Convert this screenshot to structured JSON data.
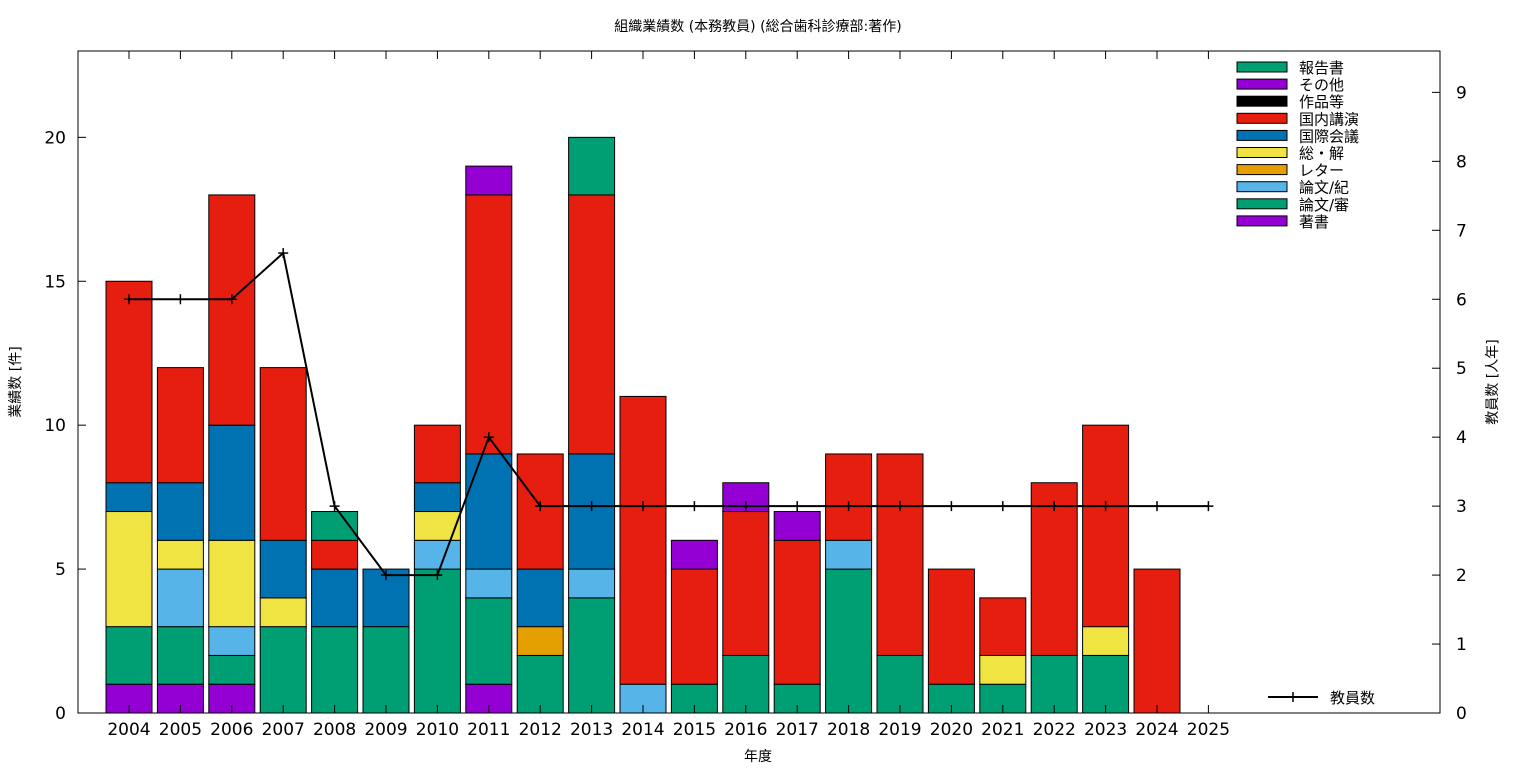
{
  "chart_data": {
    "type": "bar",
    "title": "組織業績数 (本務教員) (総合歯科診療部:著作)",
    "xlabel": "年度",
    "ylabel": "業績数 [件]",
    "y2label": "教員数 [人年]",
    "ylim": [
      0,
      23
    ],
    "y2lim": [
      0,
      9.6
    ],
    "yticks": [
      "0",
      "5",
      "10",
      "15",
      "20"
    ],
    "y2ticks": [
      "0",
      "1",
      "2",
      "3",
      "4",
      "5",
      "6",
      "7",
      "8",
      "9"
    ],
    "categories": [
      "2004",
      "2005",
      "2006",
      "2007",
      "2008",
      "2009",
      "2010",
      "2011",
      "2012",
      "2013",
      "2014",
      "2015",
      "2016",
      "2017",
      "2018",
      "2019",
      "2020",
      "2021",
      "2022",
      "2023",
      "2024",
      "2025"
    ],
    "series": [
      {
        "name": "著書",
        "color": "#9400d3",
        "values": [
          1,
          1,
          1,
          0,
          0,
          0,
          0,
          1,
          0,
          0,
          0,
          0,
          0,
          0,
          0,
          0,
          0,
          0,
          0,
          0,
          0,
          0
        ]
      },
      {
        "name": "論文/審",
        "color": "#009e73",
        "values": [
          2,
          2,
          1,
          3,
          3,
          3,
          5,
          3,
          2,
          4,
          0,
          1,
          2,
          1,
          5,
          2,
          1,
          1,
          2,
          2,
          0,
          0
        ]
      },
      {
        "name": "論文/紀",
        "color": "#56b4e9",
        "values": [
          0,
          2,
          1,
          0,
          0,
          0,
          1,
          1,
          0,
          1,
          1,
          0,
          0,
          0,
          1,
          0,
          0,
          0,
          0,
          0,
          0,
          0
        ]
      },
      {
        "name": "レター",
        "color": "#e69f00",
        "values": [
          0,
          0,
          0,
          0,
          0,
          0,
          0,
          0,
          1,
          0,
          0,
          0,
          0,
          0,
          0,
          0,
          0,
          0,
          0,
          0,
          0,
          0
        ]
      },
      {
        "name": "総・解",
        "color": "#f0e442",
        "values": [
          4,
          1,
          3,
          1,
          0,
          0,
          1,
          0,
          0,
          0,
          0,
          0,
          0,
          0,
          0,
          0,
          0,
          1,
          0,
          1,
          0,
          0
        ]
      },
      {
        "name": "国際会議",
        "color": "#0072b2",
        "values": [
          1,
          2,
          4,
          2,
          2,
          2,
          1,
          4,
          2,
          4,
          0,
          0,
          0,
          0,
          0,
          0,
          0,
          0,
          0,
          0,
          0,
          0
        ]
      },
      {
        "name": "国内講演",
        "color": "#e51e10",
        "values": [
          7,
          4,
          8,
          6,
          1,
          0,
          2,
          9,
          4,
          9,
          10,
          4,
          5,
          5,
          3,
          7,
          4,
          2,
          6,
          7,
          5,
          0
        ]
      },
      {
        "name": "作品等",
        "color": "#000000",
        "values": [
          0,
          0,
          0,
          0,
          0,
          0,
          0,
          0,
          0,
          0,
          0,
          0,
          0,
          0,
          0,
          0,
          0,
          0,
          0,
          0,
          0,
          0
        ]
      },
      {
        "name": "その他",
        "color": "#9400d3",
        "values": [
          0,
          0,
          0,
          0,
          0,
          0,
          0,
          1,
          0,
          0,
          0,
          1,
          1,
          1,
          0,
          0,
          0,
          0,
          0,
          0,
          0,
          0
        ]
      },
      {
        "name": "報告書",
        "color": "#009e73",
        "values": [
          0,
          0,
          0,
          0,
          1,
          0,
          0,
          0,
          0,
          2,
          0,
          0,
          0,
          0,
          0,
          0,
          0,
          0,
          0,
          0,
          0,
          0
        ]
      }
    ],
    "line": {
      "name": "教員数",
      "axis": "y2",
      "color": "#000000",
      "values": [
        6,
        6,
        6,
        6.67,
        3,
        2,
        2,
        4,
        3,
        3,
        3,
        3,
        3,
        3,
        3,
        3,
        3,
        3,
        3,
        3,
        3,
        3
      ]
    },
    "legend_position": "top-right"
  }
}
